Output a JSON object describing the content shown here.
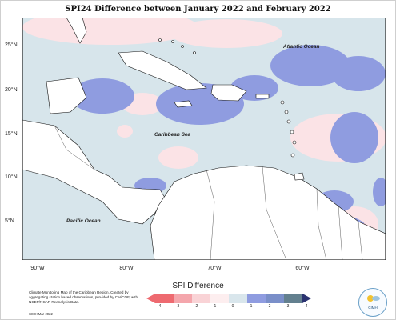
{
  "title": "SPI24 Difference between January 2022 and February 2022",
  "map_labels": {
    "atlantic": "Atlantic Ocean",
    "caribbean": "Caribbean Sea",
    "pacific": "Pacific Ocean"
  },
  "lat_labels": [
    "25°N",
    "20°N",
    "15°N",
    "10°N",
    "5°N"
  ],
  "lon_labels": [
    "90°W",
    "80°W",
    "70°W",
    "60°W"
  ],
  "credit": "Climate Monitoring Map of the Caribbean Region. Created by aggregating station based observations, provided by CariCOF, with NCEP/NCAR Reanalysis Data.",
  "credit_date": "CIMH Mar-2022",
  "legend": {
    "title": "SPI Difference",
    "ticks": [
      "-4",
      "-3",
      "-2",
      "-1",
      "0",
      "1",
      "2",
      "3",
      "4"
    ],
    "colors": [
      "#ee6a70",
      "#f4a6ac",
      "#f9d3d6",
      "#fdeeef",
      "#d9e6ec",
      "#8f9ce0",
      "#7a8fc9",
      "#63808f",
      "#2a3370"
    ]
  },
  "logo_text": "CIMH",
  "colors": {
    "ocean": "#d7e5eb",
    "land": "#ffffff",
    "positive": "#8f9ce0",
    "negative": "#fbe3e6"
  }
}
